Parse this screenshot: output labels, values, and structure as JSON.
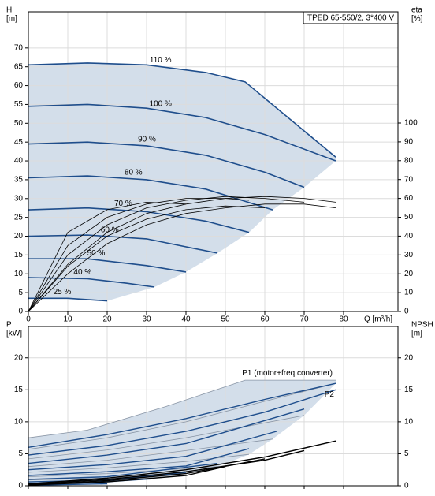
{
  "chart_data": [
    {
      "type": "line",
      "title": "TPED 65-550/2, 3*400 V",
      "ylabel": [
        "H",
        "[m]"
      ],
      "y2label": [
        "eta",
        "[%]"
      ],
      "xlabel": "Q [m³/h]",
      "xlim": [
        0,
        93.8
      ],
      "ylim": [
        0,
        79.6
      ],
      "y2lim": [
        0,
        159
      ],
      "xticks": [
        0,
        10,
        20,
        30,
        40,
        50,
        60,
        70,
        80
      ],
      "yticks": [
        0,
        5,
        10,
        15,
        20,
        25,
        30,
        35,
        40,
        45,
        50,
        55,
        60,
        65,
        70
      ],
      "y2ticks": [
        0,
        10,
        20,
        30,
        40,
        50,
        60,
        70,
        80,
        90,
        100
      ],
      "show_xtick_labels": true,
      "grid": true,
      "envelope_color": "#d3deea",
      "series": [
        {
          "name": "110 %",
          "color": "#1f4e8c",
          "x": [
            0,
            15,
            30,
            45,
            55,
            78
          ],
          "values": [
            65.5,
            66,
            65.5,
            63.5,
            61,
            41
          ]
        },
        {
          "name": "100 %",
          "color": "#1f4e8c",
          "x": [
            0,
            15,
            30,
            45,
            60,
            78
          ],
          "values": [
            54.5,
            55,
            54,
            51.5,
            47,
            40
          ]
        },
        {
          "name": "90 %",
          "color": "#1f4e8c",
          "x": [
            0,
            15,
            30,
            45,
            60,
            70
          ],
          "values": [
            44.5,
            45,
            44,
            41.5,
            37,
            33
          ]
        },
        {
          "name": "80 %",
          "color": "#1f4e8c",
          "x": [
            0,
            15,
            30,
            45,
            62
          ],
          "values": [
            35.5,
            36,
            35,
            32.5,
            27
          ]
        },
        {
          "name": "70 %",
          "color": "#1f4e8c",
          "x": [
            0,
            15,
            30,
            45,
            56
          ],
          "values": [
            27,
            27.5,
            26.5,
            24,
            21
          ]
        },
        {
          "name": "60 %",
          "color": "#1f4e8c",
          "x": [
            0,
            15,
            30,
            48
          ],
          "values": [
            20,
            20.3,
            19.3,
            15.5
          ]
        },
        {
          "name": "50 %",
          "color": "#1f4e8c",
          "x": [
            0,
            15,
            30,
            40
          ],
          "values": [
            14,
            14,
            12.2,
            10.5
          ]
        },
        {
          "name": "40 %",
          "color": "#1f4e8c",
          "x": [
            0,
            15,
            25,
            32
          ],
          "values": [
            9,
            8.7,
            7.5,
            6.5
          ]
        },
        {
          "name": "25 %",
          "color": "#1f4e8c",
          "x": [
            0,
            10,
            20
          ],
          "values": [
            3.5,
            3.5,
            2.8
          ]
        }
      ],
      "eta_curves": {
        "axis": "y2",
        "color": "#000000",
        "curves": [
          {
            "x": [
              0,
              10,
              20,
              30,
              40,
              50,
              60,
              70,
              78
            ],
            "values": [
              0,
              25,
              42,
              52,
              57,
              60,
              61,
              60,
              58
            ]
          },
          {
            "x": [
              0,
              10,
              20,
              30,
              40,
              50,
              60,
              70
            ],
            "values": [
              0,
              30,
              46,
              55,
              59,
              61,
              60,
              58
            ]
          },
          {
            "x": [
              0,
              10,
              20,
              30,
              40,
              50,
              56
            ],
            "values": [
              0,
              35,
              50,
              57,
              60,
              60,
              59
            ]
          },
          {
            "x": [
              0,
              10,
              20,
              30,
              40
            ],
            "values": [
              0,
              42,
              54,
              58,
              57
            ]
          },
          {
            "x": [
              0,
              10,
              20,
              30,
              40,
              50,
              60,
              70,
              78
            ],
            "values": [
              0,
              20,
              36,
              46,
              52,
              55,
              57,
              57,
              55
            ]
          },
          {
            "x": [
              0,
              10,
              20,
              30,
              40,
              50,
              60
            ],
            "values": [
              0,
              24,
              40,
              49,
              54,
              56,
              55
            ]
          }
        ]
      }
    },
    {
      "type": "line",
      "ylabel": [
        "P",
        "[kW]"
      ],
      "y2label": [
        "NPSH",
        "[m]"
      ],
      "xlim": [
        0,
        93.8
      ],
      "ylim": [
        0,
        24.9
      ],
      "y2lim": [
        0,
        24.9
      ],
      "xticks": [
        0,
        10,
        20,
        30,
        40,
        50,
        60,
        70,
        80
      ],
      "yticks": [
        0,
        5,
        10,
        15,
        20
      ],
      "y2ticks": [
        0,
        5,
        10,
        15,
        20
      ],
      "show_xtick_labels": false,
      "grid": true,
      "envelope_color": "#d3deea",
      "p1": {
        "label": "P1 (motor+freq.converter)",
        "color": "#8a96a6",
        "curves": [
          {
            "x": [
              0,
              15,
              35,
              55,
              78
            ],
            "values": [
              7.5,
              8.7,
              12.4,
              16.5,
              16.5
            ]
          },
          {
            "x": [
              0,
              20,
              40,
              60,
              78
            ],
            "values": [
              5.7,
              7.5,
              10,
              13.2,
              16
            ]
          },
          {
            "x": [
              0,
              20,
              40,
              70
            ],
            "values": [
              4.2,
              5.6,
              7.5,
              11
            ]
          },
          {
            "x": [
              0,
              20,
              40,
              62
            ],
            "values": [
              3,
              4,
              5.5,
              7.3
            ]
          },
          {
            "x": [
              0,
              20,
              40,
              56
            ],
            "values": [
              2.1,
              2.8,
              3.8,
              4.9
            ]
          },
          {
            "x": [
              0,
              20,
              48
            ],
            "values": [
              1.4,
              1.9,
              3
            ]
          },
          {
            "x": [
              0,
              20,
              40
            ],
            "values": [
              0.9,
              1.2,
              1.9
            ]
          },
          {
            "x": [
              0,
              16,
              32
            ],
            "values": [
              0.6,
              0.8,
              1.1
            ]
          },
          {
            "x": [
              0,
              10,
              20
            ],
            "values": [
              0.3,
              0.35,
              0.45
            ]
          }
        ]
      },
      "p2": {
        "label": "P2",
        "color": "#1f4e8c",
        "curves": [
          {
            "x": [
              0,
              20,
              40,
              60,
              78
            ],
            "values": [
              6,
              8,
              10.5,
              13.5,
              16
            ]
          },
          {
            "x": [
              0,
              20,
              40,
              60,
              78
            ],
            "values": [
              4.8,
              6.3,
              8.5,
              11.5,
              15
            ]
          },
          {
            "x": [
              0,
              20,
              40,
              70
            ],
            "values": [
              3.5,
              4.8,
              6.6,
              12
            ]
          },
          {
            "x": [
              0,
              20,
              40,
              63
            ],
            "values": [
              2.5,
              3.3,
              4.6,
              8.5
            ]
          },
          {
            "x": [
              0,
              20,
              40,
              56
            ],
            "values": [
              1.6,
              2.2,
              3.1,
              5.8
            ]
          },
          {
            "x": [
              0,
              20,
              48
            ],
            "values": [
              1,
              1.4,
              3.5
            ]
          },
          {
            "x": [
              0,
              20,
              40
            ],
            "values": [
              0.6,
              0.9,
              2.1
            ]
          },
          {
            "x": [
              0,
              16,
              32
            ],
            "values": [
              0.3,
              0.5,
              1.1
            ]
          },
          {
            "x": [
              0,
              10,
              20
            ],
            "values": [
              0.1,
              0.2,
              0.3
            ]
          }
        ]
      },
      "npsh_curves": {
        "axis": "y2",
        "color": "#000000",
        "curves": [
          {
            "x": [
              0,
              20,
              40,
              60,
              78
            ],
            "values": [
              0.3,
              1.2,
              2.5,
              4.5,
              7
            ]
          },
          {
            "x": [
              0,
              20,
              40,
              60,
              70
            ],
            "values": [
              0.2,
              1,
              2.2,
              4,
              5.5
            ]
          },
          {
            "x": [
              0,
              20,
              40,
              60
            ],
            "values": [
              0.1,
              0.8,
              1.9,
              4.2
            ]
          },
          {
            "x": [
              0,
              20,
              40,
              50
            ],
            "values": [
              0.1,
              0.6,
              1.6,
              3
            ]
          }
        ]
      }
    }
  ]
}
